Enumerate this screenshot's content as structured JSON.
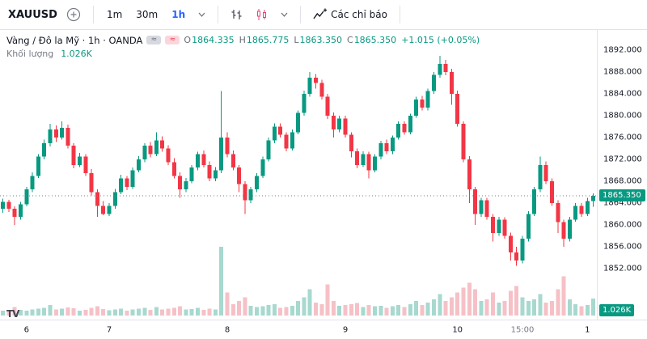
{
  "toolbar": {
    "symbol": "XAUUSD",
    "intervals": [
      {
        "label": "1m"
      },
      {
        "label": "30m"
      },
      {
        "label": "1h",
        "active": true
      }
    ],
    "indicators_label": "Các chỉ báo"
  },
  "legend": {
    "title": "Vàng / Đô la Mỹ · 1h · OANDA",
    "ohlc": {
      "o_label": "O",
      "o_value": "1864.335",
      "h_label": "H",
      "h_value": "1865.775",
      "l_label": "L",
      "l_value": "1863.350",
      "c_label": "C",
      "c_value": "1865.350",
      "change": "+1.015 (+0.05%)"
    },
    "volume_label": "Khối lượng",
    "volume_value": "1.026K"
  },
  "icons": {
    "wave_glyph": "≈",
    "tv_logo": "TV"
  },
  "colors": {
    "up": "#089981",
    "down": "#f23645",
    "vol_up": "#a7d9cf",
    "vol_down": "#f5c1c7",
    "accent_blue": "#2962ff",
    "muted": "#787b86",
    "badge": "#089981",
    "border": "#e0e3eb",
    "text": "#131722"
  },
  "price_axis": {
    "labels": [
      "1892.000",
      "1888.000",
      "1884.000",
      "1880.000",
      "1876.000",
      "1872.000",
      "1868.000",
      "1864.000",
      "1860.000",
      "1856.000",
      "1852.000"
    ],
    "last_price": "1865.350"
  },
  "time_axis": {
    "labels": [
      {
        "text": "6",
        "index": 4
      },
      {
        "text": "7",
        "index": 18
      },
      {
        "text": "8",
        "index": 38
      },
      {
        "text": "9",
        "index": 58
      },
      {
        "text": "10",
        "index": 77
      },
      {
        "text": "15:00",
        "index": 88,
        "minor": true
      },
      {
        "text": "1",
        "index": 99
      }
    ]
  },
  "chart_data": {
    "type": "candlestick",
    "title": "Vàng / Đô la Mỹ",
    "symbol": "XAUUSD",
    "exchange": "OANDA",
    "interval": "1h",
    "volume_indicator": "Khối lượng",
    "last": {
      "open": 1864.335,
      "high": 1865.775,
      "low": 1863.35,
      "close": 1865.35,
      "change": 1.015,
      "change_pct": 0.05,
      "volume_display": "1.026K"
    },
    "y_axis": {
      "max": 1892,
      "min": 1852,
      "tick_step": 4
    },
    "x_labels": [
      "6",
      "7",
      "8",
      "9",
      "10",
      "15:00",
      "1"
    ],
    "candles": [
      [
        1863.0,
        1864.8,
        1862.2,
        1864.2
      ],
      [
        1864.2,
        1864.6,
        1862.4,
        1863.0
      ],
      [
        1863.0,
        1863.4,
        1860.0,
        1861.5
      ],
      [
        1861.5,
        1864.2,
        1861.0,
        1863.8
      ],
      [
        1863.8,
        1867.0,
        1863.4,
        1866.5
      ],
      [
        1866.5,
        1869.6,
        1866.0,
        1869.0
      ],
      [
        1869.0,
        1873.0,
        1868.6,
        1872.5
      ],
      [
        1872.5,
        1875.6,
        1872.0,
        1875.0
      ],
      [
        1875.0,
        1878.5,
        1874.4,
        1877.5
      ],
      [
        1877.5,
        1878.2,
        1875.2,
        1876.0
      ],
      [
        1876.0,
        1879.0,
        1875.6,
        1877.8
      ],
      [
        1877.8,
        1878.4,
        1874.0,
        1874.5
      ],
      [
        1874.5,
        1875.0,
        1870.4,
        1871.0
      ],
      [
        1871.0,
        1873.2,
        1870.6,
        1872.5
      ],
      [
        1872.5,
        1873.0,
        1869.0,
        1869.5
      ],
      [
        1869.5,
        1870.2,
        1865.4,
        1866.0
      ],
      [
        1866.0,
        1866.5,
        1861.5,
        1863.5
      ],
      [
        1863.5,
        1864.4,
        1861.8,
        1862.0
      ],
      [
        1862.0,
        1864.0,
        1861.6,
        1863.5
      ],
      [
        1863.5,
        1866.6,
        1863.0,
        1866.0
      ],
      [
        1866.0,
        1869.2,
        1865.6,
        1868.5
      ],
      [
        1868.5,
        1869.0,
        1866.4,
        1867.0
      ],
      [
        1867.0,
        1870.5,
        1866.6,
        1870.0
      ],
      [
        1870.0,
        1872.6,
        1869.6,
        1872.0
      ],
      [
        1872.0,
        1875.0,
        1871.5,
        1874.5
      ],
      [
        1874.5,
        1875.2,
        1872.4,
        1873.0
      ],
      [
        1873.0,
        1877.0,
        1872.6,
        1875.5
      ],
      [
        1875.5,
        1876.2,
        1873.4,
        1874.0
      ],
      [
        1874.0,
        1874.6,
        1871.0,
        1871.5
      ],
      [
        1871.5,
        1872.2,
        1868.5,
        1869.0
      ],
      [
        1869.0,
        1869.6,
        1865.0,
        1866.5
      ],
      [
        1866.5,
        1868.6,
        1866.0,
        1868.0
      ],
      [
        1868.0,
        1871.0,
        1867.6,
        1870.5
      ],
      [
        1870.5,
        1873.4,
        1870.0,
        1873.0
      ],
      [
        1873.0,
        1873.6,
        1870.5,
        1871.0
      ],
      [
        1871.0,
        1871.6,
        1868.0,
        1868.5
      ],
      [
        1868.5,
        1870.6,
        1868.0,
        1870.0
      ],
      [
        1870.0,
        1884.5,
        1869.5,
        1876.0
      ],
      [
        1876.0,
        1877.0,
        1872.4,
        1873.0
      ],
      [
        1873.0,
        1873.6,
        1870.0,
        1870.5
      ],
      [
        1870.5,
        1871.0,
        1866.0,
        1867.5
      ],
      [
        1867.5,
        1868.0,
        1862.0,
        1864.5
      ],
      [
        1864.5,
        1867.0,
        1864.0,
        1866.5
      ],
      [
        1866.5,
        1869.5,
        1866.0,
        1869.0
      ],
      [
        1869.0,
        1872.5,
        1868.6,
        1872.0
      ],
      [
        1872.0,
        1876.0,
        1871.6,
        1875.5
      ],
      [
        1875.5,
        1878.6,
        1875.0,
        1878.0
      ],
      [
        1878.0,
        1878.6,
        1876.0,
        1876.5
      ],
      [
        1876.5,
        1877.0,
        1873.5,
        1874.0
      ],
      [
        1874.0,
        1877.5,
        1873.6,
        1877.0
      ],
      [
        1877.0,
        1881.0,
        1876.6,
        1880.5
      ],
      [
        1880.5,
        1884.6,
        1880.0,
        1884.0
      ],
      [
        1884.0,
        1888.0,
        1883.5,
        1887.0
      ],
      [
        1887.0,
        1887.6,
        1885.0,
        1886.0
      ],
      [
        1886.0,
        1886.6,
        1883.0,
        1883.5
      ],
      [
        1883.5,
        1884.0,
        1879.4,
        1880.0
      ],
      [
        1880.0,
        1880.6,
        1876.0,
        1877.5
      ],
      [
        1877.5,
        1880.0,
        1877.0,
        1879.5
      ],
      [
        1879.5,
        1880.0,
        1876.0,
        1876.5
      ],
      [
        1876.5,
        1877.0,
        1872.4,
        1873.5
      ],
      [
        1873.5,
        1874.0,
        1870.4,
        1871.0
      ],
      [
        1871.0,
        1873.5,
        1870.6,
        1873.0
      ],
      [
        1873.0,
        1873.4,
        1868.5,
        1870.0
      ],
      [
        1870.0,
        1873.0,
        1869.6,
        1872.5
      ],
      [
        1872.5,
        1875.4,
        1872.0,
        1875.0
      ],
      [
        1875.0,
        1875.6,
        1873.0,
        1873.5
      ],
      [
        1873.5,
        1876.4,
        1873.0,
        1876.0
      ],
      [
        1876.0,
        1879.0,
        1875.6,
        1878.5
      ],
      [
        1878.5,
        1879.0,
        1876.5,
        1877.0
      ],
      [
        1877.0,
        1880.4,
        1876.6,
        1880.0
      ],
      [
        1880.0,
        1883.5,
        1879.6,
        1883.0
      ],
      [
        1883.0,
        1883.6,
        1881.0,
        1881.5
      ],
      [
        1881.5,
        1885.0,
        1881.0,
        1884.5
      ],
      [
        1884.5,
        1888.0,
        1884.0,
        1887.5
      ],
      [
        1887.5,
        1891.0,
        1887.0,
        1889.5
      ],
      [
        1889.5,
        1890.2,
        1887.4,
        1888.0
      ],
      [
        1888.0,
        1888.6,
        1882.0,
        1884.0
      ],
      [
        1884.0,
        1884.6,
        1878.0,
        1878.5
      ],
      [
        1878.5,
        1879.0,
        1871.5,
        1872.0
      ],
      [
        1872.0,
        1872.6,
        1864.0,
        1866.5
      ],
      [
        1866.5,
        1867.0,
        1860.0,
        1862.0
      ],
      [
        1862.0,
        1865.0,
        1861.5,
        1864.5
      ],
      [
        1864.5,
        1865.0,
        1861.0,
        1861.5
      ],
      [
        1861.5,
        1862.0,
        1857.0,
        1858.5
      ],
      [
        1858.5,
        1861.5,
        1858.0,
        1861.0
      ],
      [
        1861.0,
        1861.4,
        1857.5,
        1858.0
      ],
      [
        1858.0,
        1858.6,
        1853.5,
        1855.0
      ],
      [
        1855.0,
        1856.0,
        1852.5,
        1853.5
      ],
      [
        1853.5,
        1858.0,
        1853.0,
        1857.5
      ],
      [
        1857.5,
        1862.5,
        1857.0,
        1862.0
      ],
      [
        1862.0,
        1867.0,
        1861.6,
        1866.5
      ],
      [
        1866.5,
        1872.5,
        1866.0,
        1871.0
      ],
      [
        1871.0,
        1871.6,
        1867.5,
        1868.0
      ],
      [
        1868.0,
        1868.5,
        1863.5,
        1864.0
      ],
      [
        1864.0,
        1864.5,
        1858.5,
        1860.5
      ],
      [
        1860.5,
        1861.0,
        1856.0,
        1857.5
      ],
      [
        1857.5,
        1861.5,
        1857.0,
        1861.0
      ],
      [
        1861.0,
        1864.0,
        1860.6,
        1863.5
      ],
      [
        1863.5,
        1864.0,
        1861.5,
        1862.0
      ],
      [
        1862.0,
        1865.0,
        1861.6,
        1864.335
      ],
      [
        1864.335,
        1865.775,
        1863.35,
        1865.35
      ]
    ],
    "volumes": [
      300,
      260,
      520,
      340,
      300,
      380,
      420,
      460,
      640,
      380,
      420,
      500,
      440,
      300,
      340,
      480,
      560,
      400,
      320,
      360,
      420,
      300,
      380,
      420,
      480,
      340,
      520,
      380,
      420,
      460,
      560,
      360,
      400,
      460,
      340,
      420,
      380,
      4200,
      1400,
      700,
      900,
      1100,
      600,
      520,
      560,
      640,
      700,
      480,
      520,
      600,
      900,
      1100,
      1600,
      800,
      700,
      1900,
      900,
      600,
      640,
      700,
      760,
      520,
      640,
      560,
      600,
      480,
      560,
      640,
      520,
      700,
      900,
      640,
      800,
      1000,
      1300,
      900,
      1100,
      1400,
      1700,
      2000,
      1600,
      900,
      1000,
      1400,
      800,
      900,
      1500,
      1800,
      1100,
      900,
      1000,
      1300,
      800,
      900,
      1600,
      2400,
      1000,
      700,
      560,
      640,
      1026
    ]
  }
}
